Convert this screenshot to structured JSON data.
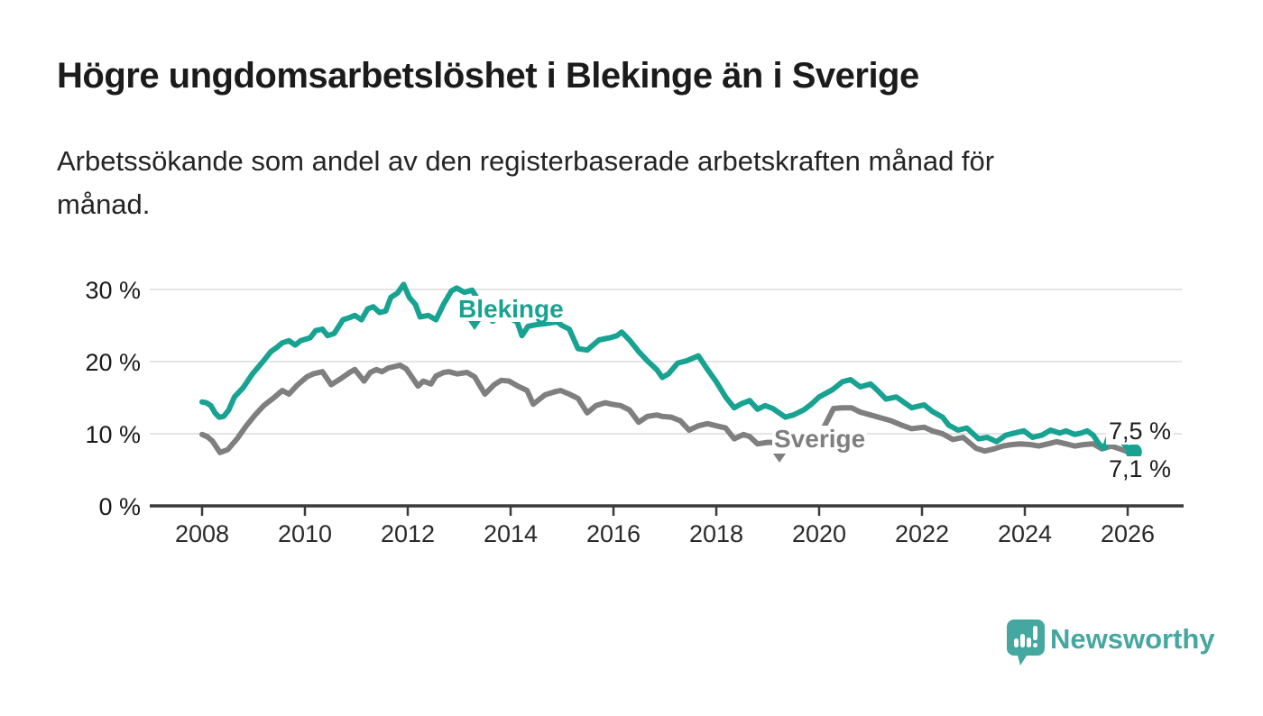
{
  "header": {
    "title": "Högre ungdomsarbetslöshet i Blekinge än i Sverige",
    "subtitle_lines": [
      "Arbetssökande som andel av den registerbaserade arbetskraften månad för",
      "månad."
    ]
  },
  "colors": {
    "blekinge": "#17a291",
    "sverige": "#7f7f7f",
    "gridline": "#dcdcdc",
    "axis": "#3a3a3a",
    "text": "#1b1b1b",
    "brand_teal": "#44a7a0"
  },
  "chart_data": {
    "type": "line",
    "title": "Högre ungdomsarbetslöshet i Blekinge än i Sverige",
    "subtitle": "Arbetssökande som andel av den registerbaserade arbetskraften månad för månad.",
    "unit": "%",
    "grid": "horizontal",
    "x_axis": {
      "ticks": [
        2008,
        2010,
        2012,
        2014,
        2016,
        2018,
        2020,
        2022,
        2024,
        2026
      ],
      "range_years": [
        2007.0,
        2027.0
      ]
    },
    "y_axis": {
      "ticks": [
        0,
        10,
        20,
        30
      ],
      "tick_labels": [
        "0 %",
        "10 %",
        "20 %",
        "30 %"
      ],
      "range": [
        0,
        33
      ]
    },
    "series": [
      {
        "name": "Sverige",
        "color": "#7f7f7f",
        "end_label": "7,1 %",
        "latest_value": 7.1,
        "points": [
          [
            2008.0,
            9.9
          ],
          [
            2008.1,
            9.6
          ],
          [
            2008.2,
            9.0
          ],
          [
            2008.35,
            7.4
          ],
          [
            2008.5,
            7.8
          ],
          [
            2008.68,
            9.3
          ],
          [
            2008.85,
            11.0
          ],
          [
            2009.03,
            12.6
          ],
          [
            2009.2,
            13.9
          ],
          [
            2009.38,
            14.9
          ],
          [
            2009.56,
            16.0
          ],
          [
            2009.69,
            15.5
          ],
          [
            2009.86,
            16.8
          ],
          [
            2010.04,
            17.9
          ],
          [
            2010.16,
            18.3
          ],
          [
            2010.34,
            18.6
          ],
          [
            2010.51,
            16.8
          ],
          [
            2010.69,
            17.6
          ],
          [
            2010.87,
            18.5
          ],
          [
            2010.97,
            18.9
          ],
          [
            2011.15,
            17.3
          ],
          [
            2011.27,
            18.5
          ],
          [
            2011.39,
            18.9
          ],
          [
            2011.5,
            18.6
          ],
          [
            2011.62,
            19.1
          ],
          [
            2011.85,
            19.5
          ],
          [
            2011.97,
            19.0
          ],
          [
            2012.2,
            16.6
          ],
          [
            2012.3,
            17.3
          ],
          [
            2012.45,
            16.9
          ],
          [
            2012.55,
            18.0
          ],
          [
            2012.7,
            18.5
          ],
          [
            2012.8,
            18.6
          ],
          [
            2012.96,
            18.3
          ],
          [
            2013.15,
            18.5
          ],
          [
            2013.3,
            17.9
          ],
          [
            2013.5,
            15.5
          ],
          [
            2013.68,
            16.8
          ],
          [
            2013.82,
            17.4
          ],
          [
            2013.97,
            17.3
          ],
          [
            2014.14,
            16.6
          ],
          [
            2014.32,
            16.0
          ],
          [
            2014.44,
            14.1
          ],
          [
            2014.67,
            15.4
          ],
          [
            2014.85,
            15.8
          ],
          [
            2014.97,
            16.0
          ],
          [
            2015.14,
            15.5
          ],
          [
            2015.31,
            14.9
          ],
          [
            2015.49,
            12.9
          ],
          [
            2015.66,
            13.9
          ],
          [
            2015.84,
            14.3
          ],
          [
            2015.96,
            14.1
          ],
          [
            2016.14,
            13.9
          ],
          [
            2016.31,
            13.3
          ],
          [
            2016.49,
            11.6
          ],
          [
            2016.66,
            12.4
          ],
          [
            2016.84,
            12.6
          ],
          [
            2016.95,
            12.4
          ],
          [
            2017.12,
            12.3
          ],
          [
            2017.3,
            11.8
          ],
          [
            2017.47,
            10.5
          ],
          [
            2017.65,
            11.1
          ],
          [
            2017.83,
            11.4
          ],
          [
            2018.0,
            11.1
          ],
          [
            2018.18,
            10.8
          ],
          [
            2018.35,
            9.3
          ],
          [
            2018.53,
            9.9
          ],
          [
            2018.65,
            9.6
          ],
          [
            2018.8,
            8.6
          ],
          [
            2019.0,
            8.8
          ],
          [
            2019.2,
            8.8
          ],
          [
            2019.4,
            8.6
          ],
          [
            2019.6,
            8.4
          ],
          [
            2019.8,
            8.8
          ],
          [
            2019.95,
            9.3
          ],
          [
            2020.1,
            11.0
          ],
          [
            2020.28,
            13.5
          ],
          [
            2020.45,
            13.6
          ],
          [
            2020.63,
            13.6
          ],
          [
            2020.8,
            13.0
          ],
          [
            2021.0,
            12.6
          ],
          [
            2021.2,
            12.2
          ],
          [
            2021.4,
            11.8
          ],
          [
            2021.6,
            11.2
          ],
          [
            2021.8,
            10.7
          ],
          [
            2022.04,
            10.9
          ],
          [
            2022.2,
            10.4
          ],
          [
            2022.4,
            10.0
          ],
          [
            2022.6,
            9.2
          ],
          [
            2022.8,
            9.5
          ],
          [
            2023.05,
            8.0
          ],
          [
            2023.22,
            7.6
          ],
          [
            2023.4,
            7.9
          ],
          [
            2023.57,
            8.3
          ],
          [
            2023.75,
            8.5
          ],
          [
            2023.92,
            8.6
          ],
          [
            2024.1,
            8.5
          ],
          [
            2024.27,
            8.3
          ],
          [
            2024.45,
            8.6
          ],
          [
            2024.62,
            8.9
          ],
          [
            2024.8,
            8.6
          ],
          [
            2024.97,
            8.3
          ],
          [
            2025.15,
            8.5
          ],
          [
            2025.33,
            8.6
          ],
          [
            2025.5,
            7.9
          ],
          [
            2025.68,
            8.3
          ],
          [
            2025.85,
            7.9
          ],
          [
            2026.0,
            7.5
          ],
          [
            2026.12,
            7.1
          ]
        ]
      },
      {
        "name": "Blekinge",
        "color": "#17a291",
        "end_label": "7,5 %",
        "latest_value": 7.5,
        "end_dot": true,
        "points": [
          [
            2008.0,
            14.4
          ],
          [
            2008.08,
            14.3
          ],
          [
            2008.17,
            13.9
          ],
          [
            2008.25,
            12.9
          ],
          [
            2008.33,
            12.3
          ],
          [
            2008.42,
            12.4
          ],
          [
            2008.52,
            13.3
          ],
          [
            2008.63,
            15.1
          ],
          [
            2008.8,
            16.4
          ],
          [
            2008.98,
            18.3
          ],
          [
            2009.16,
            19.8
          ],
          [
            2009.34,
            21.4
          ],
          [
            2009.46,
            22.0
          ],
          [
            2009.56,
            22.6
          ],
          [
            2009.69,
            22.9
          ],
          [
            2009.81,
            22.3
          ],
          [
            2009.92,
            22.9
          ],
          [
            2010.1,
            23.3
          ],
          [
            2010.21,
            24.3
          ],
          [
            2010.34,
            24.5
          ],
          [
            2010.44,
            23.6
          ],
          [
            2010.57,
            23.9
          ],
          [
            2010.74,
            25.8
          ],
          [
            2010.87,
            26.1
          ],
          [
            2010.97,
            26.4
          ],
          [
            2011.1,
            25.8
          ],
          [
            2011.22,
            27.3
          ],
          [
            2011.33,
            27.6
          ],
          [
            2011.45,
            26.8
          ],
          [
            2011.57,
            27.0
          ],
          [
            2011.67,
            28.9
          ],
          [
            2011.8,
            29.5
          ],
          [
            2011.92,
            30.7
          ],
          [
            2012.03,
            28.9
          ],
          [
            2012.15,
            27.9
          ],
          [
            2012.24,
            26.2
          ],
          [
            2012.4,
            26.4
          ],
          [
            2012.55,
            25.8
          ],
          [
            2012.7,
            28.0
          ],
          [
            2012.85,
            29.8
          ],
          [
            2012.95,
            30.2
          ],
          [
            2013.1,
            29.6
          ],
          [
            2013.25,
            29.9
          ],
          [
            2013.4,
            28.2
          ],
          [
            2013.52,
            26.6
          ],
          [
            2013.65,
            25.6
          ],
          [
            2013.8,
            26.5
          ],
          [
            2013.95,
            26.1
          ],
          [
            2014.13,
            25.5
          ],
          [
            2014.22,
            23.6
          ],
          [
            2014.34,
            24.9
          ],
          [
            2014.49,
            25.1
          ],
          [
            2014.7,
            25.3
          ],
          [
            2014.91,
            25.5
          ],
          [
            2015.0,
            25.0
          ],
          [
            2015.14,
            24.5
          ],
          [
            2015.31,
            21.8
          ],
          [
            2015.49,
            21.6
          ],
          [
            2015.72,
            23.0
          ],
          [
            2015.93,
            23.3
          ],
          [
            2016.07,
            23.6
          ],
          [
            2016.16,
            24.1
          ],
          [
            2016.31,
            23.0
          ],
          [
            2016.49,
            21.4
          ],
          [
            2016.66,
            20.1
          ],
          [
            2016.84,
            18.9
          ],
          [
            2016.95,
            17.8
          ],
          [
            2017.07,
            18.3
          ],
          [
            2017.25,
            19.8
          ],
          [
            2017.42,
            20.1
          ],
          [
            2017.55,
            20.5
          ],
          [
            2017.65,
            20.8
          ],
          [
            2017.83,
            18.9
          ],
          [
            2018.0,
            17.2
          ],
          [
            2018.18,
            15.1
          ],
          [
            2018.35,
            13.6
          ],
          [
            2018.5,
            14.2
          ],
          [
            2018.65,
            14.6
          ],
          [
            2018.8,
            13.4
          ],
          [
            2018.95,
            13.9
          ],
          [
            2019.1,
            13.5
          ],
          [
            2019.34,
            12.3
          ],
          [
            2019.5,
            12.6
          ],
          [
            2019.7,
            13.3
          ],
          [
            2019.85,
            14.1
          ],
          [
            2020.0,
            15.1
          ],
          [
            2020.26,
            16.1
          ],
          [
            2020.45,
            17.2
          ],
          [
            2020.61,
            17.5
          ],
          [
            2020.8,
            16.5
          ],
          [
            2021.0,
            16.9
          ],
          [
            2021.15,
            15.9
          ],
          [
            2021.3,
            14.8
          ],
          [
            2021.5,
            15.1
          ],
          [
            2021.8,
            13.6
          ],
          [
            2022.04,
            14.0
          ],
          [
            2022.2,
            13.1
          ],
          [
            2022.4,
            12.3
          ],
          [
            2022.52,
            11.2
          ],
          [
            2022.7,
            10.5
          ],
          [
            2022.87,
            10.8
          ],
          [
            2023.1,
            9.3
          ],
          [
            2023.27,
            9.5
          ],
          [
            2023.45,
            8.9
          ],
          [
            2023.63,
            9.8
          ],
          [
            2023.8,
            10.1
          ],
          [
            2023.98,
            10.4
          ],
          [
            2024.15,
            9.5
          ],
          [
            2024.33,
            9.8
          ],
          [
            2024.5,
            10.5
          ],
          [
            2024.68,
            10.1
          ],
          [
            2024.8,
            10.4
          ],
          [
            2024.97,
            9.9
          ],
          [
            2025.1,
            10.1
          ],
          [
            2025.21,
            10.4
          ],
          [
            2025.33,
            9.8
          ],
          [
            2025.45,
            8.5
          ],
          [
            2025.55,
            8.0
          ],
          [
            2025.67,
            10.4
          ],
          [
            2025.85,
            9.2
          ],
          [
            2026.0,
            8.0
          ],
          [
            2026.12,
            7.5
          ]
        ]
      }
    ],
    "legend_position": "inline-labels"
  },
  "logo": {
    "text": "Newsworthy",
    "icon": "speech-bubble-bar-chart-exclamation"
  }
}
